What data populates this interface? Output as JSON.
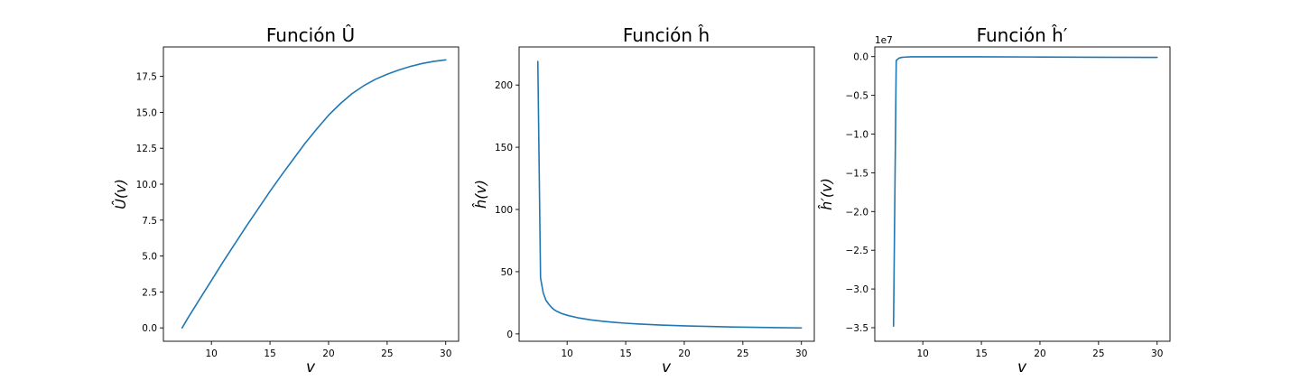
{
  "figure": {
    "background": "#ffffff",
    "line_color": "#1f77b4"
  },
  "chart_data": [
    {
      "type": "line",
      "title": "Función Û",
      "xlabel": "v",
      "ylabel": "Û(v)",
      "xlim": [
        5.9,
        31.1
      ],
      "ylim": [
        -0.93,
        19.55
      ],
      "xticks": [
        10,
        15,
        20,
        25,
        30
      ],
      "yticks": [
        0.0,
        2.5,
        5.0,
        7.5,
        10.0,
        12.5,
        15.0,
        17.5
      ],
      "ytick_labels": [
        "0.0",
        "2.5",
        "5.0",
        "7.5",
        "10.0",
        "12.5",
        "15.0",
        "17.5"
      ],
      "offset_text": "",
      "grid": false,
      "series": [
        {
          "x": [
            7.5,
            8,
            9,
            10,
            11,
            12,
            13,
            14,
            15,
            16,
            17,
            18,
            19,
            20,
            21,
            22,
            23,
            24,
            25,
            26,
            27,
            28,
            29,
            30
          ],
          "y": [
            0.0,
            0.7,
            2.0,
            3.3,
            4.6,
            5.85,
            7.1,
            8.3,
            9.5,
            10.65,
            11.75,
            12.85,
            13.85,
            14.8,
            15.6,
            16.3,
            16.85,
            17.3,
            17.65,
            17.95,
            18.2,
            18.4,
            18.55,
            18.65
          ]
        }
      ]
    },
    {
      "type": "line",
      "title": "Función ĥ",
      "xlabel": "v",
      "ylabel": "ĥ(v)",
      "xlim": [
        5.9,
        31.1
      ],
      "ylim": [
        -5.9,
        230.6
      ],
      "xticks": [
        10,
        15,
        20,
        25,
        30
      ],
      "yticks": [
        0,
        50,
        100,
        150,
        200
      ],
      "ytick_labels": [
        "0",
        "50",
        "100",
        "150",
        "200"
      ],
      "offset_text": "",
      "grid": false,
      "series": [
        {
          "x": [
            7.5,
            7.73,
            7.96,
            8.19,
            8.42,
            8.65,
            8.88,
            9.1,
            9.5,
            10,
            11,
            12,
            13,
            14,
            15,
            16,
            18,
            20,
            22,
            24,
            26,
            28,
            30
          ],
          "y": [
            219.0,
            45.0,
            33.0,
            27.0,
            24.0,
            21.5,
            19.5,
            18.3,
            16.5,
            15.0,
            12.8,
            11.3,
            10.2,
            9.3,
            8.6,
            8.0,
            7.1,
            6.5,
            6.0,
            5.6,
            5.3,
            5.0,
            4.8
          ]
        }
      ]
    },
    {
      "type": "line",
      "title": "Función ĥ′",
      "xlabel": "v",
      "ylabel": "ĥ′(v)",
      "xlim": [
        5.9,
        31.1
      ],
      "ylim": [
        -3.675,
        0.125
      ],
      "xticks": [
        10,
        15,
        20,
        25,
        30
      ],
      "yticks": [
        0.0,
        -0.5,
        -1.0,
        -1.5,
        -2.0,
        -2.5,
        -3.0,
        -3.5
      ],
      "ytick_labels": [
        "0.0",
        "−0.5",
        "−1.0",
        "−1.5",
        "−2.0",
        "−2.5",
        "−3.0",
        "−3.5"
      ],
      "offset_text": "1e7",
      "grid": false,
      "series": [
        {
          "x": [
            7.5,
            7.73,
            7.96,
            8.2,
            8.5,
            9,
            10,
            12,
            15,
            20,
            25,
            30
          ],
          "y": [
            -3.48,
            -0.05,
            -0.02,
            -0.01,
            -0.006,
            -0.003,
            -0.002,
            -0.002,
            -0.003,
            -0.005,
            -0.008,
            -0.01
          ]
        }
      ]
    }
  ]
}
